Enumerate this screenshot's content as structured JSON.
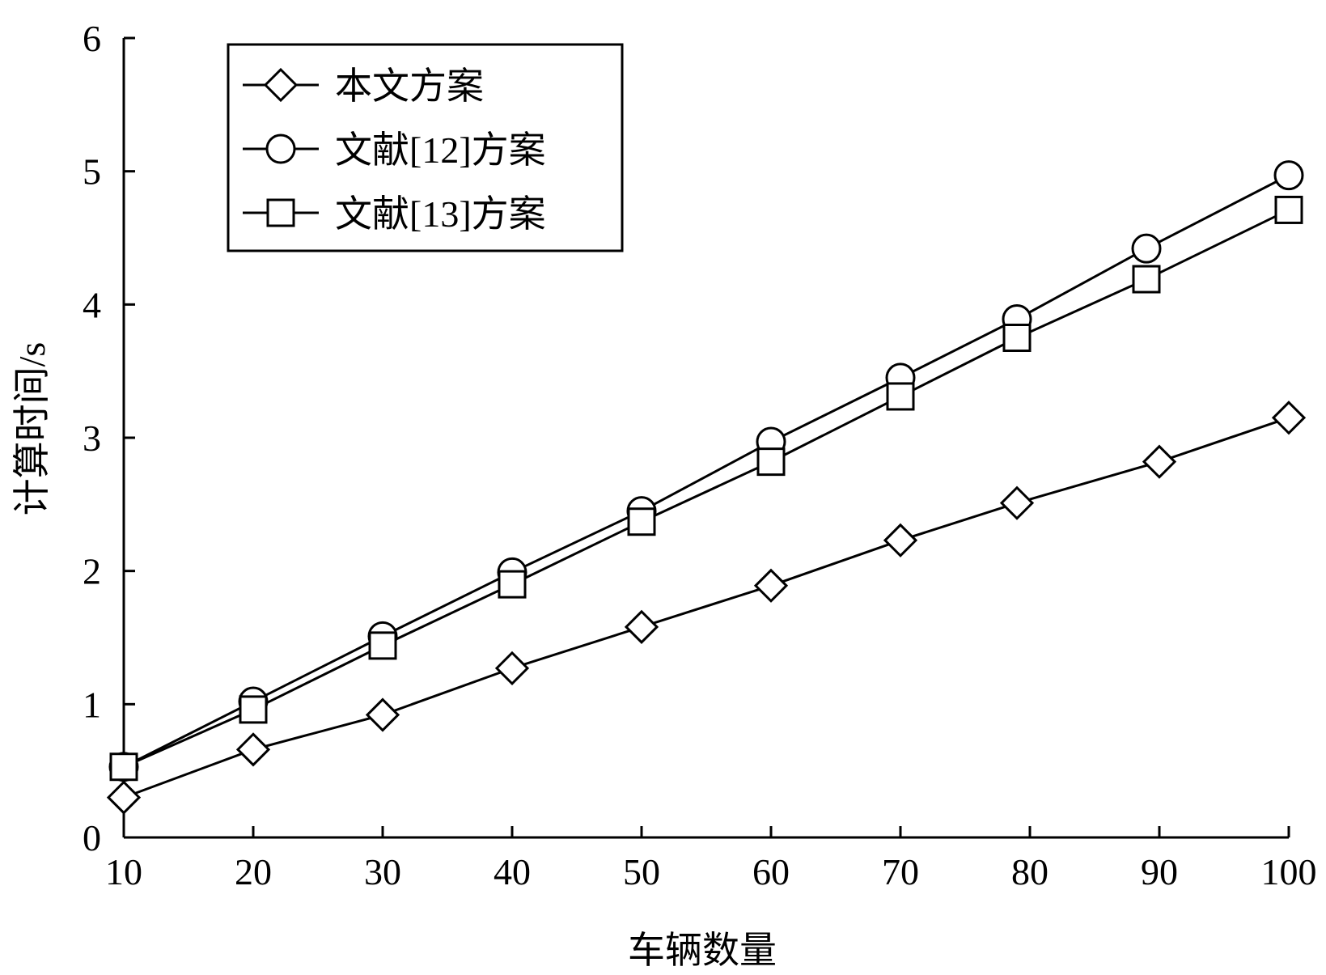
{
  "chart_data": {
    "type": "line",
    "title": "",
    "xlabel": "车辆数量",
    "ylabel": "计算时间/s",
    "xlim": [
      10,
      100
    ],
    "ylim": [
      0,
      6
    ],
    "xticks": [
      "10",
      "20",
      "30",
      "40",
      "50",
      "60",
      "70",
      "80",
      "90",
      "100"
    ],
    "yticks": [
      "0",
      "1",
      "2",
      "3",
      "4",
      "5",
      "6"
    ],
    "grid": false,
    "legend_position": "top-left",
    "line_color": "#000000",
    "series": [
      {
        "name": "本文方案",
        "marker": "diamond",
        "x": [
          10,
          20,
          30,
          40,
          50,
          60,
          70,
          79,
          90,
          100
        ],
        "y": [
          0.3,
          0.66,
          0.92,
          1.27,
          1.58,
          1.89,
          2.23,
          2.51,
          2.82,
          3.15
        ]
      },
      {
        "name": "文献[12]方案",
        "marker": "circle",
        "x": [
          10,
          20,
          30,
          40,
          50,
          60,
          70,
          79,
          89,
          100
        ],
        "y": [
          0.53,
          1.02,
          1.51,
          1.99,
          2.45,
          2.97,
          3.45,
          3.89,
          4.42,
          4.97
        ]
      },
      {
        "name": "文献[13]方案",
        "marker": "square",
        "x": [
          10,
          20,
          30,
          40,
          50,
          60,
          70,
          79,
          89,
          100
        ],
        "y": [
          0.53,
          0.96,
          1.44,
          1.9,
          2.37,
          2.82,
          3.31,
          3.75,
          4.19,
          4.71
        ]
      }
    ]
  }
}
